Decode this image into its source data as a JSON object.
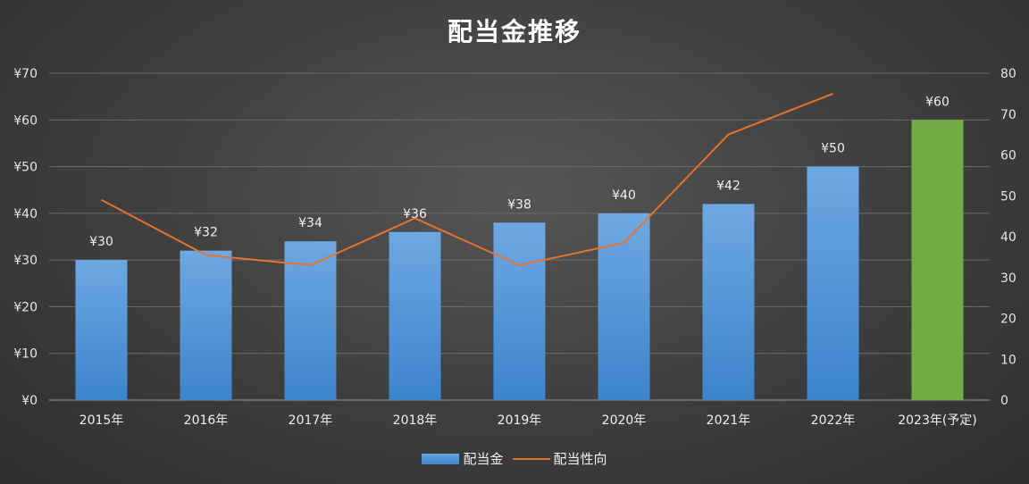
{
  "chart_data": {
    "type": "bar",
    "title": "配当金推移",
    "categories": [
      "2015年",
      "2016年",
      "2017年",
      "2018年",
      "2019年",
      "2020年",
      "2021年",
      "2022年",
      "2023年(予定)"
    ],
    "series": [
      {
        "name": "配当金",
        "type": "bar",
        "axis": "left",
        "values": [
          30,
          32,
          34,
          36,
          38,
          40,
          42,
          50,
          60
        ],
        "data_labels": [
          "¥30",
          "¥32",
          "¥34",
          "¥36",
          "¥38",
          "¥40",
          "¥42",
          "¥50",
          "¥60"
        ],
        "color": "#5b9bd5",
        "highlight_color": "#70ad47",
        "highlight_index": 8
      },
      {
        "name": "配当性向",
        "type": "line",
        "axis": "right",
        "values": [
          49,
          35.5,
          33,
          44.5,
          33,
          38.5,
          65,
          75,
          null
        ],
        "color": "#e8722c"
      }
    ],
    "y_left": {
      "min": 0,
      "max": 70,
      "step": 10,
      "tick_labels": [
        "¥0",
        "¥10",
        "¥20",
        "¥30",
        "¥40",
        "¥50",
        "¥60",
        "¥70"
      ]
    },
    "y_right": {
      "min": 0,
      "max": 80,
      "step": 10,
      "tick_labels": [
        "0",
        "10",
        "20",
        "30",
        "40",
        "50",
        "60",
        "70",
        "80"
      ]
    },
    "grid": true,
    "legend_position": "bottom"
  }
}
